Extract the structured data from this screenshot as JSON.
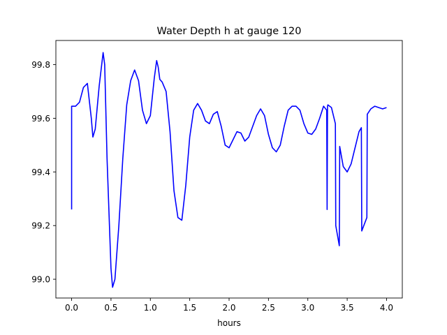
{
  "chart_data": {
    "type": "line",
    "title": "Water Depth h at gauge 120",
    "xlabel": "hours",
    "ylabel": "",
    "xlim": [
      -0.2,
      4.2
    ],
    "ylim": [
      98.93,
      99.89
    ],
    "xticks": [
      0.0,
      0.5,
      1.0,
      1.5,
      2.0,
      2.5,
      3.0,
      3.5,
      4.0
    ],
    "xtick_labels": [
      "0.0",
      "0.5",
      "1.0",
      "1.5",
      "2.0",
      "2.5",
      "3.0",
      "3.5",
      "4.0"
    ],
    "yticks": [
      99.0,
      99.2,
      99.4,
      99.6,
      99.8
    ],
    "ytick_labels": [
      "99.0",
      "99.2",
      "99.4",
      "99.6",
      "99.8"
    ],
    "grid": false,
    "series": [
      {
        "color": "#0000ff",
        "x": [
          0.0,
          0.0,
          0.05,
          0.1,
          0.15,
          0.2,
          0.25,
          0.27,
          0.3,
          0.35,
          0.4,
          0.42,
          0.45,
          0.5,
          0.52,
          0.55,
          0.6,
          0.65,
          0.7,
          0.75,
          0.8,
          0.85,
          0.9,
          0.95,
          1.0,
          1.05,
          1.08,
          1.1,
          1.12,
          1.15,
          1.2,
          1.25,
          1.3,
          1.35,
          1.4,
          1.45,
          1.5,
          1.55,
          1.6,
          1.65,
          1.7,
          1.75,
          1.8,
          1.85,
          1.9,
          1.95,
          2.0,
          2.05,
          2.1,
          2.15,
          2.2,
          2.25,
          2.3,
          2.35,
          2.4,
          2.45,
          2.5,
          2.55,
          2.6,
          2.65,
          2.7,
          2.75,
          2.8,
          2.85,
          2.9,
          2.95,
          3.0,
          3.05,
          3.1,
          3.15,
          3.2,
          3.24,
          3.245,
          3.25,
          3.255,
          3.3,
          3.35,
          3.355,
          3.4,
          3.405,
          3.45,
          3.5,
          3.55,
          3.6,
          3.65,
          3.68,
          3.685,
          3.75,
          3.755,
          3.8,
          3.85,
          3.9,
          3.95,
          4.0
        ],
        "y": [
          99.26,
          99.645,
          99.645,
          99.66,
          99.715,
          99.73,
          99.6,
          99.53,
          99.56,
          99.72,
          99.845,
          99.8,
          99.45,
          99.04,
          98.97,
          99.0,
          99.2,
          99.45,
          99.65,
          99.74,
          99.78,
          99.74,
          99.63,
          99.58,
          99.61,
          99.75,
          99.815,
          99.79,
          99.745,
          99.735,
          99.7,
          99.55,
          99.33,
          99.23,
          99.22,
          99.35,
          99.53,
          99.63,
          99.655,
          99.63,
          99.59,
          99.58,
          99.615,
          99.625,
          99.57,
          99.5,
          99.49,
          99.52,
          99.55,
          99.545,
          99.515,
          99.53,
          99.57,
          99.61,
          99.635,
          99.61,
          99.54,
          99.49,
          99.475,
          99.5,
          99.57,
          99.63,
          99.645,
          99.645,
          99.63,
          99.58,
          99.545,
          99.54,
          99.56,
          99.6,
          99.645,
          99.63,
          99.26,
          99.645,
          99.65,
          99.64,
          99.58,
          99.2,
          99.125,
          99.495,
          99.42,
          99.4,
          99.43,
          99.49,
          99.55,
          99.565,
          99.18,
          99.23,
          99.615,
          99.635,
          99.645,
          99.64,
          99.635,
          99.64
        ]
      }
    ]
  }
}
